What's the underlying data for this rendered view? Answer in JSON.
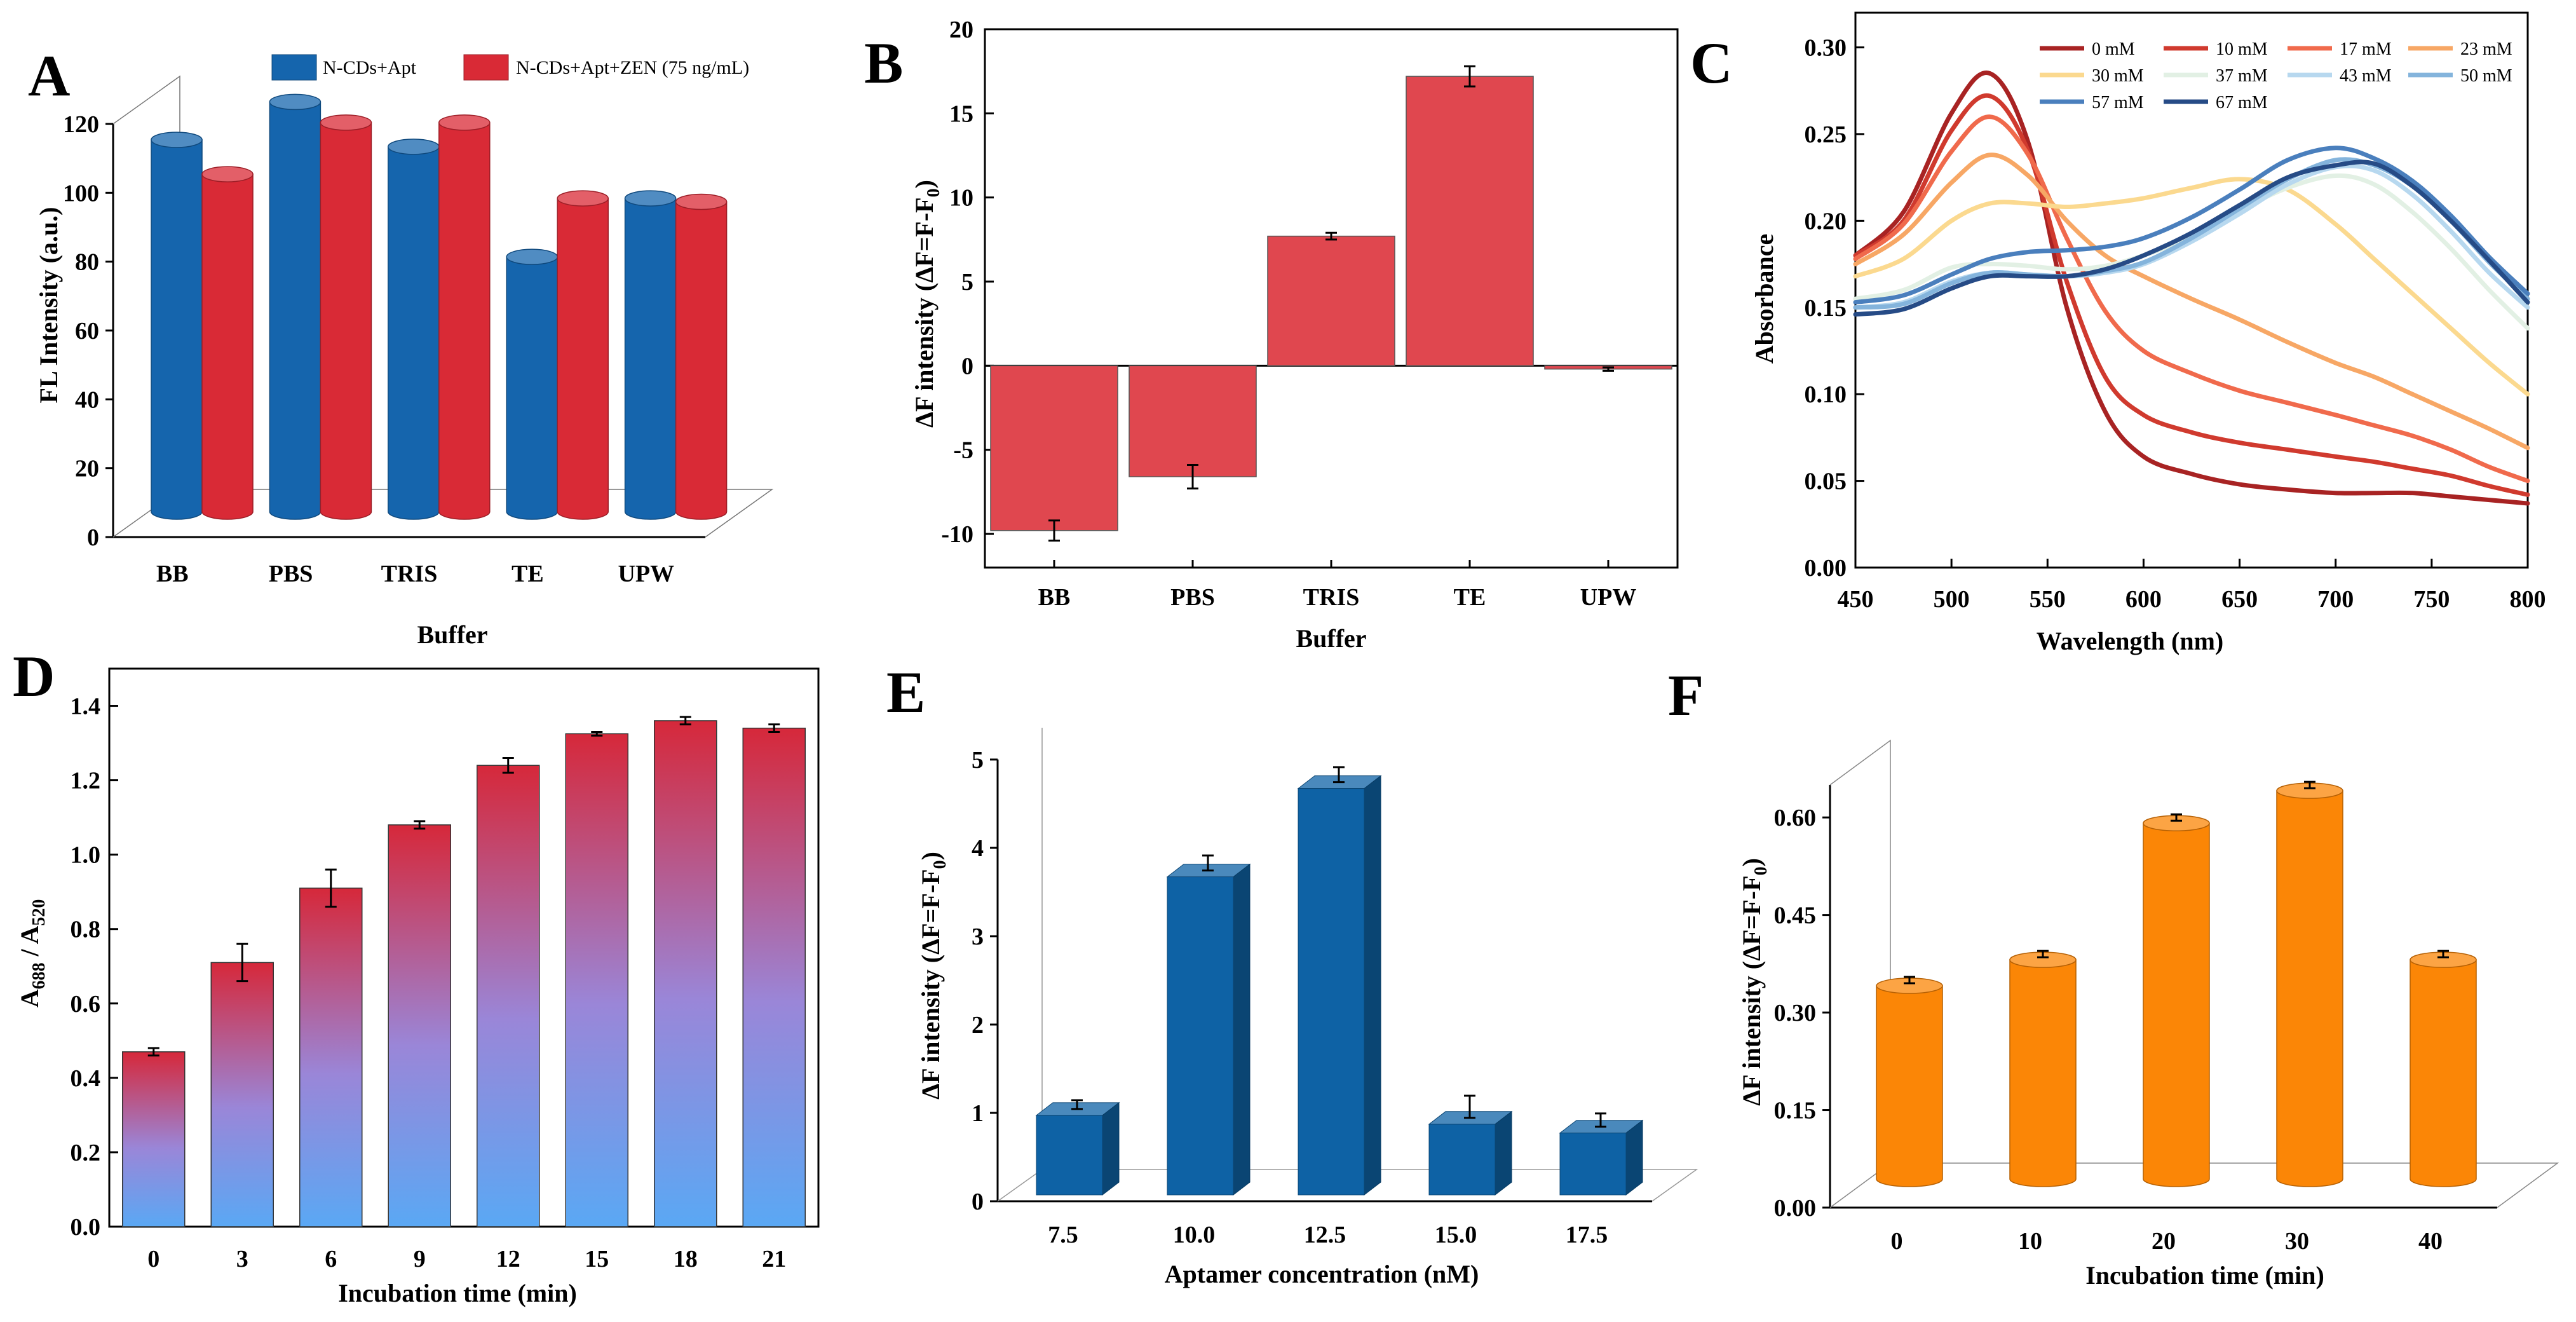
{
  "chart_data": [
    {
      "panel": "A",
      "type": "bar",
      "style": "3d-cylinder",
      "categories": [
        "BB",
        "PBS",
        "TRIS",
        "TE",
        "UPW"
      ],
      "series": [
        {
          "name": "N-CDs+Apt",
          "color": "#1565ad",
          "values": [
            108,
            119,
            106,
            74,
            91
          ]
        },
        {
          "name": "N-CDs+Apt+ZEN (75 ng/mL)",
          "color": "#d92a36",
          "values": [
            98,
            113,
            113,
            91,
            90
          ]
        }
      ],
      "xlabel": "Buffer",
      "ylabel": "FL Intensity (a.u.)",
      "ylim": [
        0,
        120
      ],
      "yticks": [
        "0",
        "20",
        "40",
        "60",
        "80",
        "100",
        "120"
      ],
      "legend_position": "top-right"
    },
    {
      "panel": "B",
      "type": "bar",
      "categories": [
        "BB",
        "PBS",
        "TRIS",
        "TE",
        "UPW"
      ],
      "values": [
        -9.8,
        -6.6,
        7.7,
        17.2,
        -0.2
      ],
      "errors": [
        0.6,
        0.7,
        0.2,
        0.6,
        0.1
      ],
      "color": "#e0474f",
      "xlabel": "Buffer",
      "ylabel_main": "ΔF intensity (ΔF=F-F",
      "ylabel_sub": "0",
      "ylabel_end": ")",
      "ylim": [
        -12,
        20
      ],
      "yticks": [
        "-10",
        "-5",
        "0",
        "5",
        "10",
        "15",
        "20"
      ]
    },
    {
      "panel": "C",
      "type": "line",
      "xlabel": "Wavelength (nm)",
      "ylabel": "Absorbance",
      "xlim": [
        450,
        800
      ],
      "ylim": [
        0,
        0.32
      ],
      "xticks": [
        "450",
        "500",
        "550",
        "600",
        "650",
        "700",
        "750",
        "800"
      ],
      "yticks": [
        "0.00",
        "0.05",
        "0.10",
        "0.15",
        "0.20",
        "0.25",
        "0.30"
      ],
      "x": [
        450,
        475,
        500,
        520,
        540,
        560,
        580,
        600,
        625,
        650,
        675,
        700,
        720,
        740,
        760,
        780,
        800
      ],
      "series": [
        {
          "name": "0 mM",
          "color": "#a82323",
          "values": [
            0.18,
            0.205,
            0.262,
            0.285,
            0.245,
            0.15,
            0.09,
            0.064,
            0.054,
            0.048,
            0.045,
            0.043,
            0.043,
            0.043,
            0.041,
            0.039,
            0.037
          ]
        },
        {
          "name": "10 mM",
          "color": "#d03a2e",
          "values": [
            0.18,
            0.2,
            0.252,
            0.272,
            0.24,
            0.165,
            0.11,
            0.088,
            0.078,
            0.072,
            0.068,
            0.064,
            0.061,
            0.057,
            0.053,
            0.047,
            0.042
          ]
        },
        {
          "name": "17 mM",
          "color": "#f06a4c",
          "values": [
            0.178,
            0.198,
            0.24,
            0.26,
            0.238,
            0.19,
            0.148,
            0.125,
            0.112,
            0.102,
            0.095,
            0.088,
            0.082,
            0.076,
            0.068,
            0.058,
            0.05
          ]
        },
        {
          "name": "23 mM",
          "color": "#f7a765",
          "values": [
            0.175,
            0.192,
            0.222,
            0.238,
            0.226,
            0.2,
            0.18,
            0.168,
            0.155,
            0.143,
            0.13,
            0.118,
            0.11,
            0.1,
            0.09,
            0.08,
            0.069
          ]
        },
        {
          "name": "30 mM",
          "color": "#fbd98f",
          "values": [
            0.168,
            0.178,
            0.2,
            0.21,
            0.21,
            0.208,
            0.21,
            0.213,
            0.219,
            0.224,
            0.218,
            0.198,
            0.178,
            0.158,
            0.138,
            0.118,
            0.1
          ]
        },
        {
          "name": "37 mM",
          "color": "#e2f0e4",
          "values": [
            0.155,
            0.16,
            0.173,
            0.175,
            0.174,
            0.172,
            0.174,
            0.18,
            0.191,
            0.206,
            0.219,
            0.226,
            0.221,
            0.205,
            0.184,
            0.16,
            0.138
          ]
        },
        {
          "name": "43 mM",
          "color": "#b7d8ef",
          "values": [
            0.15,
            0.153,
            0.165,
            0.17,
            0.169,
            0.168,
            0.17,
            0.175,
            0.188,
            0.204,
            0.221,
            0.231,
            0.229,
            0.215,
            0.194,
            0.17,
            0.15
          ]
        },
        {
          "name": "50 mM",
          "color": "#84b4dc",
          "values": [
            0.15,
            0.152,
            0.164,
            0.17,
            0.169,
            0.168,
            0.171,
            0.176,
            0.19,
            0.207,
            0.224,
            0.235,
            0.232,
            0.22,
            0.2,
            0.176,
            0.155
          ]
        },
        {
          "name": "57 mM",
          "color": "#4a7fbd",
          "values": [
            0.153,
            0.157,
            0.169,
            0.178,
            0.182,
            0.183,
            0.185,
            0.19,
            0.202,
            0.218,
            0.235,
            0.242,
            0.236,
            0.223,
            0.203,
            0.179,
            0.158
          ]
        },
        {
          "name": "67 mM",
          "color": "#264b86",
          "values": [
            0.146,
            0.149,
            0.161,
            0.168,
            0.168,
            0.168,
            0.172,
            0.18,
            0.193,
            0.209,
            0.225,
            0.232,
            0.233,
            0.22,
            0.2,
            0.177,
            0.153
          ]
        }
      ],
      "legend_position": "top-right"
    },
    {
      "panel": "D",
      "type": "bar",
      "style": "gradient",
      "categories": [
        "0",
        "3",
        "6",
        "9",
        "12",
        "15",
        "18",
        "21"
      ],
      "values": [
        0.47,
        0.71,
        0.91,
        1.08,
        1.24,
        1.325,
        1.36,
        1.34
      ],
      "errors": [
        0.01,
        0.05,
        0.05,
        0.01,
        0.02,
        0.005,
        0.01,
        0.01
      ],
      "gradient_top": "#d6283a",
      "gradient_mid": "#9a86d8",
      "gradient_bottom": "#5aa8f4",
      "xlabel": "Incubation time (min)",
      "ylabel_main": "A",
      "ylabel_sub1": "688",
      "ylabel_mid": " / A",
      "ylabel_sub2": "520",
      "ylim": [
        0,
        1.5
      ],
      "yticks": [
        "0.0",
        "0.2",
        "0.4",
        "0.6",
        "0.8",
        "1.0",
        "1.2",
        "1.4"
      ]
    },
    {
      "panel": "E",
      "type": "bar",
      "style": "3d",
      "categories": [
        "7.5",
        "10.0",
        "12.5",
        "15.0",
        "17.5"
      ],
      "values": [
        0.9,
        3.6,
        4.6,
        0.8,
        0.7
      ],
      "errors": [
        0.1,
        0.17,
        0.17,
        0.25,
        0.15
      ],
      "color": "#0e62a5",
      "xlabel": "Aptamer concentration (nM)",
      "ylabel_main": "ΔF intensity (ΔF=F-F",
      "ylabel_sub": "0",
      "ylabel_end": ")",
      "ylim": [
        0,
        5
      ],
      "yticks": [
        "0",
        "1",
        "2",
        "3",
        "4",
        "5"
      ]
    },
    {
      "panel": "F",
      "type": "bar",
      "style": "3d-cylinder",
      "categories": [
        "0",
        "10",
        "20",
        "30",
        "40"
      ],
      "values": [
        0.345,
        0.385,
        0.595,
        0.645,
        0.385
      ],
      "errors": [
        0.006,
        0.006,
        0.006,
        0.006,
        0.008
      ],
      "color": "#fb8606",
      "xlabel": "Incubation time (min)",
      "ylabel_main": "ΔF intensity (ΔF=F-F",
      "ylabel_sub": "0",
      "ylabel_end": ")",
      "ylim": [
        0,
        0.65
      ],
      "yticks": [
        "0.00",
        "0.15",
        "0.30",
        "0.45",
        "0.60"
      ]
    }
  ],
  "panel_letters": [
    "A",
    "B",
    "C",
    "D",
    "E",
    "F"
  ]
}
